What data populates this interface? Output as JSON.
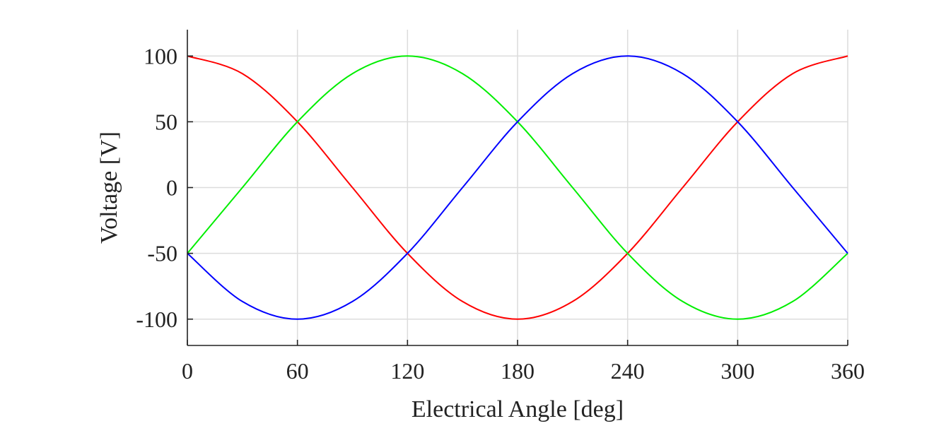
{
  "chart_data": {
    "type": "line",
    "title": "",
    "xlabel": "Electrical Angle [deg]",
    "ylabel": "Voltage [V]",
    "xlim": [
      0,
      360
    ],
    "ylim": [
      -120,
      120
    ],
    "xticks": [
      0,
      60,
      120,
      180,
      240,
      300,
      360
    ],
    "yticks": [
      100,
      50,
      0,
      -50,
      -100
    ],
    "xtick_labels": [
      "0",
      "60",
      "120",
      "180",
      "240",
      "300",
      "360"
    ],
    "ytick_labels": [
      "100",
      "50",
      "0",
      "-50",
      "-100"
    ],
    "grid": true,
    "x": [
      0,
      30,
      60,
      90,
      120,
      150,
      180,
      210,
      240,
      270,
      300,
      330,
      360
    ],
    "series": [
      {
        "color": "#ff0000",
        "values": [
          100,
          86.6,
          50,
          0,
          -50,
          -86.6,
          -100,
          -86.6,
          -50,
          0,
          50,
          86.6,
          100
        ]
      },
      {
        "color": "#00ee00",
        "values": [
          -50,
          0,
          50,
          86.6,
          100,
          86.6,
          50,
          0,
          -50,
          -86.6,
          -100,
          -86.6,
          -50
        ]
      },
      {
        "color": "#0000ff",
        "values": [
          -50,
          -86.6,
          -100,
          -86.6,
          -50,
          0,
          50,
          86.6,
          100,
          86.6,
          50,
          0,
          -50
        ]
      }
    ]
  }
}
